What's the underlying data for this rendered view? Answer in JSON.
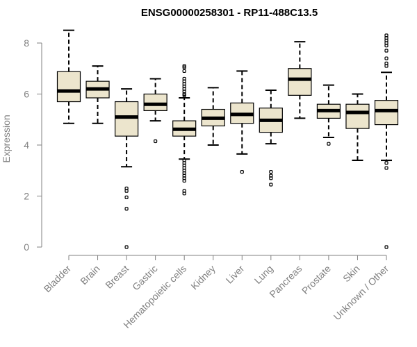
{
  "chart_data": {
    "type": "boxplot",
    "title": "ENSG00000258301 - RP11-488C13.5",
    "ylabel": "Expression",
    "xlabel": "",
    "ylim": [
      0,
      8.6
    ],
    "yticks": [
      0,
      2,
      4,
      6,
      8
    ],
    "grid": false,
    "legend": "none",
    "box_color": "#ece5cd",
    "categories": [
      "Bladder",
      "Brain",
      "Breast",
      "Gastric",
      "Hematopoietic cells",
      "Kidney",
      "Liver",
      "Lung",
      "Pancreas",
      "Prostate",
      "Skin",
      "Unknown / Other"
    ],
    "boxes": [
      {
        "min": 4.85,
        "q1": 5.7,
        "median": 6.12,
        "q3": 6.88,
        "max": 8.5,
        "outliers": []
      },
      {
        "min": 4.85,
        "q1": 5.85,
        "median": 6.2,
        "q3": 6.5,
        "max": 7.1,
        "outliers": []
      },
      {
        "min": 3.15,
        "q1": 4.35,
        "median": 5.1,
        "q3": 5.7,
        "max": 6.2,
        "outliers": [
          2.3,
          2.2,
          1.95,
          1.5,
          0.0
        ]
      },
      {
        "min": 4.95,
        "q1": 5.35,
        "median": 5.6,
        "q3": 6.0,
        "max": 6.6,
        "outliers": [
          4.15
        ]
      },
      {
        "min": 3.45,
        "q1": 4.35,
        "median": 4.62,
        "q3": 4.95,
        "max": 5.85,
        "outliers": [
          7.1,
          7.05,
          6.9,
          6.6,
          6.5,
          6.4,
          6.3,
          6.2,
          6.1,
          6.0,
          5.95,
          3.4,
          3.3,
          3.2,
          3.1,
          3.0,
          2.9,
          2.8,
          2.7,
          2.6,
          2.2,
          2.1
        ]
      },
      {
        "min": 4.0,
        "q1": 4.75,
        "median": 5.05,
        "q3": 5.4,
        "max": 6.25,
        "outliers": []
      },
      {
        "min": 3.65,
        "q1": 4.85,
        "median": 5.2,
        "q3": 5.65,
        "max": 6.9,
        "outliers": [
          2.95
        ]
      },
      {
        "min": 4.05,
        "q1": 4.5,
        "median": 4.97,
        "q3": 5.45,
        "max": 6.15,
        "outliers": [
          2.95,
          2.8,
          2.7,
          2.45
        ]
      },
      {
        "min": 5.05,
        "q1": 5.95,
        "median": 6.58,
        "q3": 7.0,
        "max": 8.05,
        "outliers": []
      },
      {
        "min": 4.3,
        "q1": 5.05,
        "median": 5.35,
        "q3": 5.6,
        "max": 6.35,
        "outliers": [
          4.05
        ]
      },
      {
        "min": 3.4,
        "q1": 4.65,
        "median": 5.28,
        "q3": 5.6,
        "max": 6.0,
        "outliers": []
      },
      {
        "min": 3.4,
        "q1": 4.8,
        "median": 5.35,
        "q3": 5.75,
        "max": 6.85,
        "outliers": [
          8.3,
          8.2,
          8.1,
          8.0,
          7.9,
          7.7,
          7.4,
          7.2,
          7.1,
          3.3,
          3.1,
          0.0
        ]
      }
    ]
  }
}
